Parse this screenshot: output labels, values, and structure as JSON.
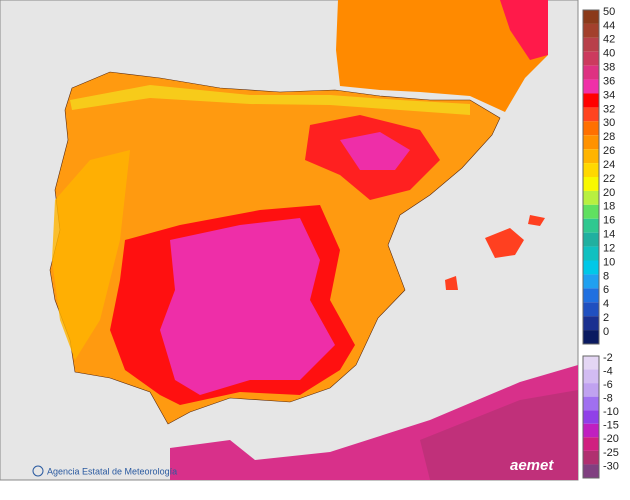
{
  "legend": {
    "upper": [
      {
        "label": 50,
        "color": "#8b3a1a"
      },
      {
        "label": 44,
        "color": "#a3402c"
      },
      {
        "label": 42,
        "color": "#b8404a"
      },
      {
        "label": 40,
        "color": "#cc3a5e"
      },
      {
        "label": 38,
        "color": "#de3282"
      },
      {
        "label": 36,
        "color": "#f030a8"
      },
      {
        "label": 34,
        "color": "#ff0000"
      },
      {
        "label": 32,
        "color": "#ff4420"
      },
      {
        "label": 30,
        "color": "#ff7000"
      },
      {
        "label": 28,
        "color": "#ff9200"
      },
      {
        "label": 26,
        "color": "#ffb400"
      },
      {
        "label": 24,
        "color": "#ffd800"
      },
      {
        "label": 22,
        "color": "#f8f800"
      },
      {
        "label": 20,
        "color": "#b8f040"
      },
      {
        "label": 18,
        "color": "#60e060"
      },
      {
        "label": 16,
        "color": "#30c890"
      },
      {
        "label": 14,
        "color": "#20b0a0"
      },
      {
        "label": 12,
        "color": "#10c0c0"
      },
      {
        "label": 10,
        "color": "#00c8e8"
      },
      {
        "label": 8,
        "color": "#20a0f0"
      },
      {
        "label": 6,
        "color": "#2070e0"
      },
      {
        "label": 4,
        "color": "#2050c0"
      },
      {
        "label": 2,
        "color": "#1a3090"
      },
      {
        "label": 0,
        "color": "#0a1a60"
      }
    ],
    "lower": [
      {
        "label": -2,
        "color": "#e4d6f4"
      },
      {
        "label": -4,
        "color": "#d2bcf2"
      },
      {
        "label": -6,
        "color": "#c0a2f0"
      },
      {
        "label": -8,
        "color": "#a070f0"
      },
      {
        "label": -10,
        "color": "#9040e8"
      },
      {
        "label": -15,
        "color": "#c020c0"
      },
      {
        "label": -20,
        "color": "#d02080"
      },
      {
        "label": -25,
        "color": "#b03070"
      },
      {
        "label": -30,
        "color": "#804080"
      }
    ]
  },
  "footer": {
    "agency": "Agencia Estatal de Meteorología",
    "logo": "aemet"
  }
}
